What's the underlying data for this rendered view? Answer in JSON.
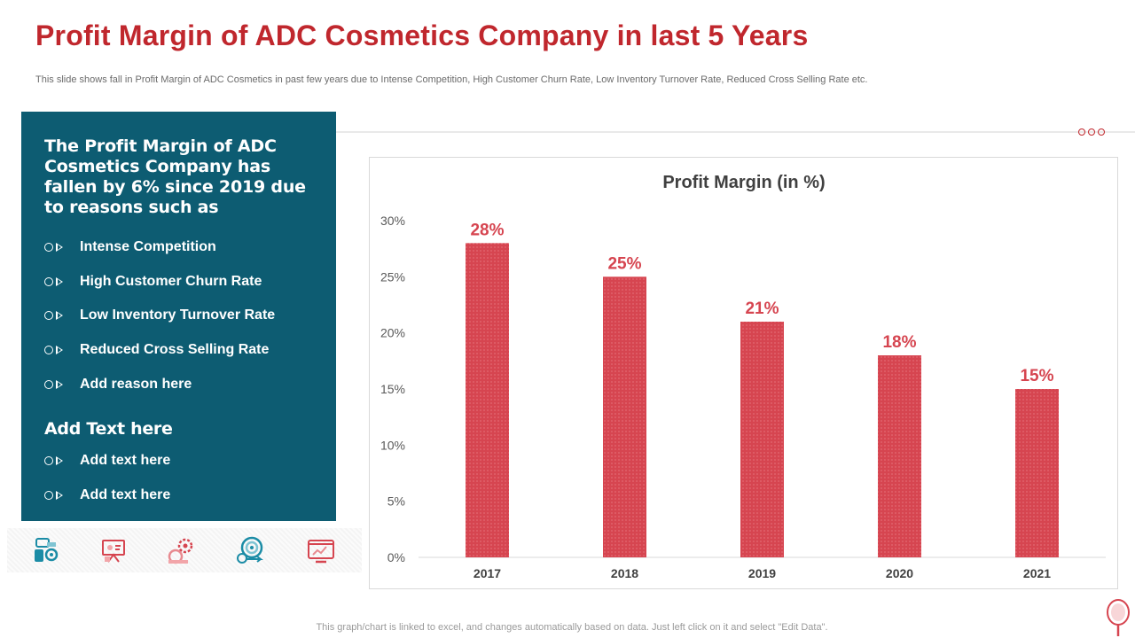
{
  "header": {
    "title": "Profit Margin of ADC Cosmetics Company in last 5 Years",
    "subtitle": "This slide shows fall in Profit Margin of ADC Cosmetics in past few years due to Intense Competition, High Customer Churn Rate, Low Inventory Turnover Rate, Reduced Cross Selling Rate etc."
  },
  "panel": {
    "heading": "The Profit Margin of ADC Cosmetics Company has fallen by 6% since 2019 due to reasons such as",
    "reasons": [
      "Intense Competition",
      "High Customer Churn Rate",
      "Low Inventory Turnover Rate",
      "Reduced Cross Selling Rate",
      "Add reason here"
    ],
    "heading2": "Add Text here",
    "texts": [
      "Add text here",
      "Add text here"
    ]
  },
  "icons": [
    "team-gear-icon",
    "presentation-icon",
    "gears-icon",
    "target-icon",
    "monitor-chart-icon"
  ],
  "footer": {
    "note": "This graph/chart is linked to excel,  and changes automatically based on data. Just left click on it and select \"Edit Data\"."
  },
  "colors": {
    "accent": "#c0272d",
    "panel": "#0d5c72",
    "bar": "#d64550"
  },
  "chart_data": {
    "type": "bar",
    "title": "Profit Margin (in %)",
    "categories": [
      "2017",
      "2018",
      "2019",
      "2020",
      "2021"
    ],
    "values": [
      28,
      25,
      21,
      18,
      15
    ],
    "data_labels": [
      "28%",
      "25%",
      "21%",
      "18%",
      "15%"
    ],
    "ylim": [
      0,
      30
    ],
    "yticks": [
      0,
      5,
      10,
      15,
      20,
      25,
      30
    ],
    "ytick_labels": [
      "0%",
      "5%",
      "10%",
      "15%",
      "20%",
      "25%",
      "30%"
    ],
    "xlabel": "",
    "ylabel": "",
    "grid": false
  }
}
